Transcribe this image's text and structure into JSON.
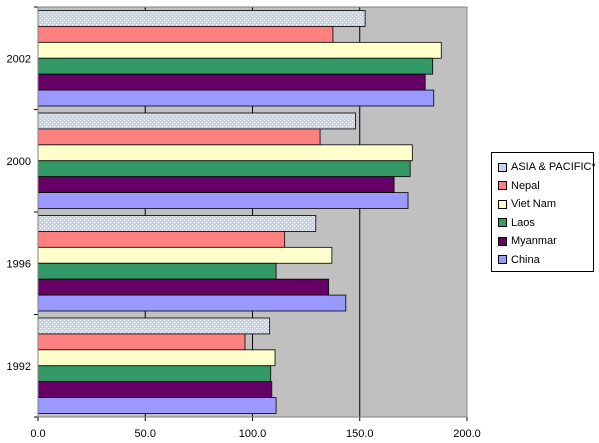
{
  "chart_data": {
    "type": "bar",
    "orientation": "horizontal",
    "title": "",
    "xlabel": "",
    "ylabel": "",
    "xlim": [
      0,
      200
    ],
    "x_ticks": [
      "0.0",
      "50.0",
      "100.0",
      "150.0",
      "200.0"
    ],
    "categories": [
      "2002",
      "2000",
      "1996",
      "1992"
    ],
    "series": [
      {
        "name": "ASIA & PACIFIC*",
        "color": "#c6d4f0",
        "pattern": "dotted",
        "values": [
          152.5,
          148,
          129.5,
          108
        ]
      },
      {
        "name": "Nepal",
        "color": "#ff8080",
        "values": [
          137.5,
          131.5,
          115,
          96.5
        ]
      },
      {
        "name": "Viet Nam",
        "color": "#ffffcc",
        "values": [
          188,
          174.5,
          137,
          110.5
        ]
      },
      {
        "name": "Laos",
        "color": "#339966",
        "values": [
          184,
          173.5,
          111,
          108.5
        ]
      },
      {
        "name": "Myanmar",
        "color": "#660066",
        "values": [
          180.5,
          166,
          135.5,
          109
        ]
      },
      {
        "name": "China",
        "color": "#9999ff",
        "values": [
          184.5,
          172.5,
          143.5,
          111
        ]
      }
    ],
    "grid": true,
    "plot_background": "#c0c0c0",
    "legend_position": "right"
  }
}
